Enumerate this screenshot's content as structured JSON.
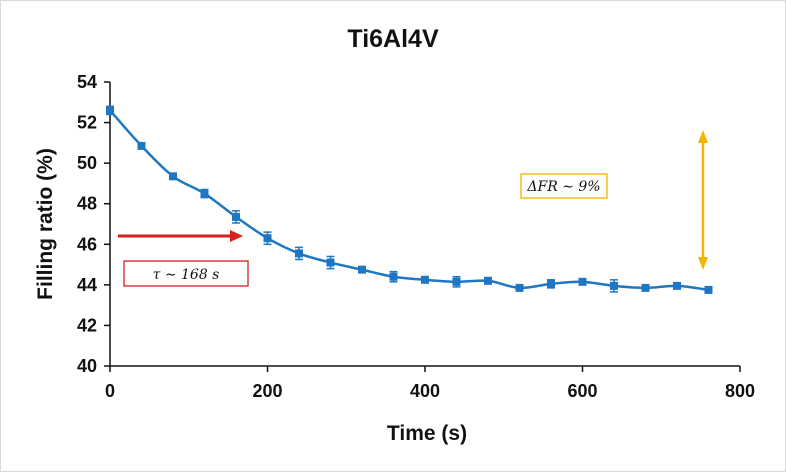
{
  "chart_data": {
    "type": "line",
    "title": "Ti6Al4V",
    "xlabel": "Time (s)",
    "ylabel": "Filling ratio (%)",
    "xlim": [
      0,
      800
    ],
    "ylim": [
      40,
      54
    ],
    "xticks": [
      "0",
      "200",
      "400",
      "600",
      "800"
    ],
    "yticks": [
      "40",
      "42",
      "44",
      "46",
      "48",
      "50",
      "52",
      "54"
    ],
    "grid": false,
    "series": [
      {
        "color": "#1f77c4",
        "marker": "square",
        "x": [
          0,
          40,
          80,
          120,
          160,
          200,
          240,
          280,
          320,
          360,
          400,
          440,
          480,
          520,
          560,
          600,
          640,
          680,
          720,
          760
        ],
        "y": [
          52.6,
          50.85,
          49.35,
          48.5,
          47.35,
          46.3,
          45.55,
          45.1,
          44.75,
          44.4,
          44.25,
          44.15,
          44.2,
          43.85,
          44.05,
          44.15,
          43.95,
          43.85,
          43.95,
          43.75
        ],
        "err": [
          0.2,
          0.1,
          0.1,
          0.2,
          0.3,
          0.3,
          0.3,
          0.3,
          0.1,
          0.25,
          0.15,
          0.25,
          0.1,
          0.1,
          0.2,
          0.1,
          0.3,
          0.1,
          0.1,
          0.1
        ]
      }
    ],
    "annotations": {
      "tau": {
        "text": "τ ∼ 168 s",
        "arrow_color": "#d62020",
        "box_color": "#d62020"
      },
      "delta": {
        "text": "ΔFR ∼ 9%",
        "arrow_color": "#f2b400",
        "box_color": "#f2b400"
      }
    }
  }
}
